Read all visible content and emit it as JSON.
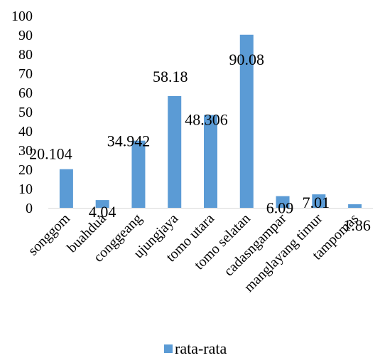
{
  "chart_data": {
    "type": "bar",
    "categories": [
      "songgom",
      "buahdua",
      "conggeang",
      "ujungjaya",
      "tomo utara",
      "tomo selatan",
      "cadasngampar",
      "manglayang timur",
      "tampomas"
    ],
    "series": [
      {
        "name": "rata-rata",
        "values": [
          20.104,
          4.04,
          34.942,
          58.18,
          48.306,
          90.08,
          6.09,
          7.01,
          1.86
        ],
        "color": "#5B9BD5"
      }
    ],
    "data_labels": [
      "20.104",
      "4.04",
      "34.942",
      "58.18",
      "48.306",
      "90.08",
      "6.09",
      "7.01",
      "1.86"
    ],
    "y_ticks": [
      "0",
      "10",
      "20",
      "30",
      "40",
      "50",
      "60",
      "70",
      "80",
      "90",
      "100"
    ],
    "ylim": [
      0,
      100
    ],
    "grid": false,
    "legend_position": "bottom",
    "title": "",
    "xlabel": "",
    "ylabel": ""
  }
}
